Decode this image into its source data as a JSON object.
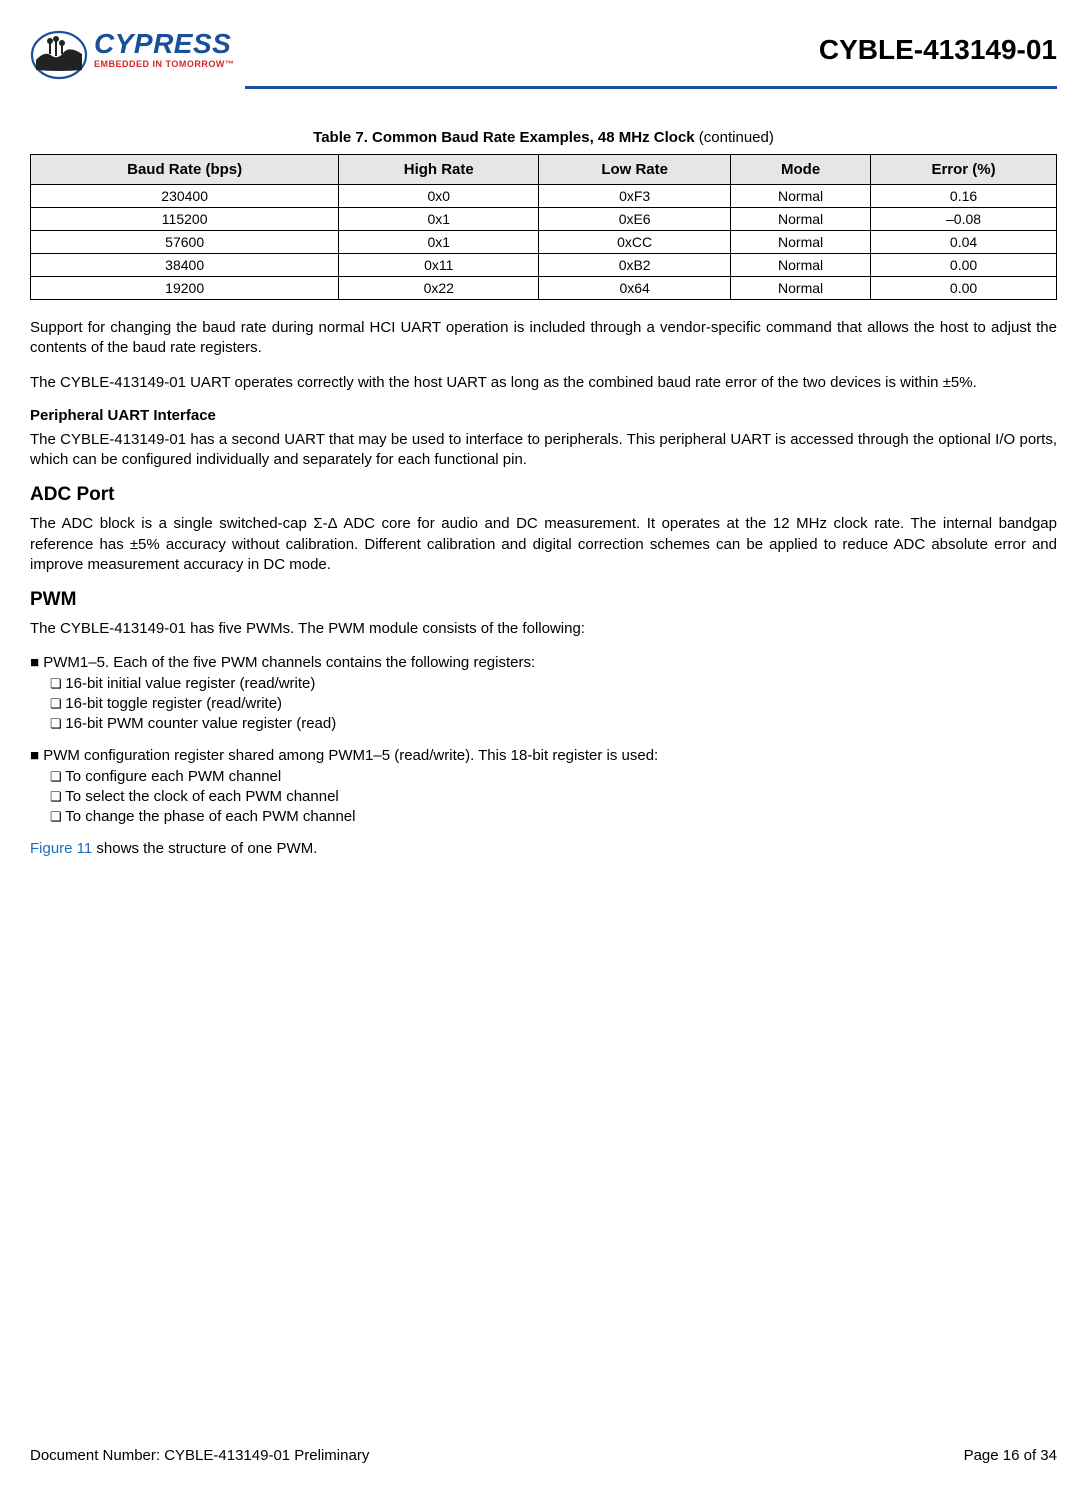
{
  "header": {
    "logo": {
      "name": "CYPRESS",
      "tagline": "EMBEDDED IN TOMORROW™",
      "name_color": "#1a4f9c",
      "tagline_color": "#d9252a"
    },
    "doc_title": "CYBLE-413149-01",
    "rule_color": "#1a4f9c"
  },
  "table": {
    "caption_prefix": "Table 7.  Common Baud Rate Examples, 48 MHz Clock",
    "caption_suffix": " (continued)",
    "header_bg": "#e6e6e6",
    "border_color": "#000000",
    "columns": [
      "Baud Rate (bps)",
      "High Rate",
      "Low Rate",
      "Mode",
      "Error (%)"
    ],
    "rows": [
      [
        "230400",
        "0x0",
        "0xF3",
        "Normal",
        "0.16"
      ],
      [
        "115200",
        "0x1",
        "0xE6",
        "Normal",
        "–0.08"
      ],
      [
        "57600",
        "0x1",
        "0xCC",
        "Normal",
        "0.04"
      ],
      [
        "38400",
        "0x11",
        "0xB2",
        "Normal",
        "0.00"
      ],
      [
        "19200",
        "0x22",
        "0x64",
        "Normal",
        "0.00"
      ]
    ]
  },
  "body": {
    "p1": "Support for changing the baud rate during normal HCI UART operation is included through a vendor-specific command that allows the host to adjust the contents of the baud rate registers.",
    "p2": "The CYBLE-413149-01 UART operates correctly with the host UART as long as the combined baud rate error of the two devices is within ±5%.",
    "sub1": "Peripheral UART Interface",
    "p3": "The CYBLE-413149-01 has a second UART that may be used to interface to peripherals. This peripheral UART is accessed through the optional I/O ports, which can be configured individually and separately for each functional pin.",
    "h_adc": "ADC Port",
    "p_adc": "The ADC block is a single switched-cap Σ-Δ ADC core for audio and DC measurement. It operates at the 12 MHz clock rate. The internal bandgap reference has ±5% accuracy without calibration. Different calibration and digital correction schemes can be applied to reduce ADC absolute error and improve measurement accuracy in DC mode.",
    "h_pwm": "PWM",
    "p_pwm_intro": "The CYBLE-413149-01 has five PWMs. The PWM module consists of the following:",
    "pwm_list1": {
      "head": "PWM1–5. Each of the five PWM channels contains the following registers:",
      "items": [
        "16-bit initial value register (read/write)",
        "16-bit toggle register (read/write)",
        "16-bit PWM counter value register (read)"
      ]
    },
    "pwm_list2": {
      "head": "PWM configuration register shared among PWM1–5 (read/write). This 18-bit register is used:",
      "items": [
        "To configure each PWM channel",
        "To select the clock of each PWM channel",
        "To change the phase of each PWM channel"
      ]
    },
    "fig_ref_link": "Figure 11",
    "fig_ref_rest": " shows the structure of one PWM.",
    "link_color": "#1a6ec1"
  },
  "footer": {
    "left": "Document Number:  CYBLE-413149-01 Preliminary",
    "right": "Page 16 of 34"
  }
}
